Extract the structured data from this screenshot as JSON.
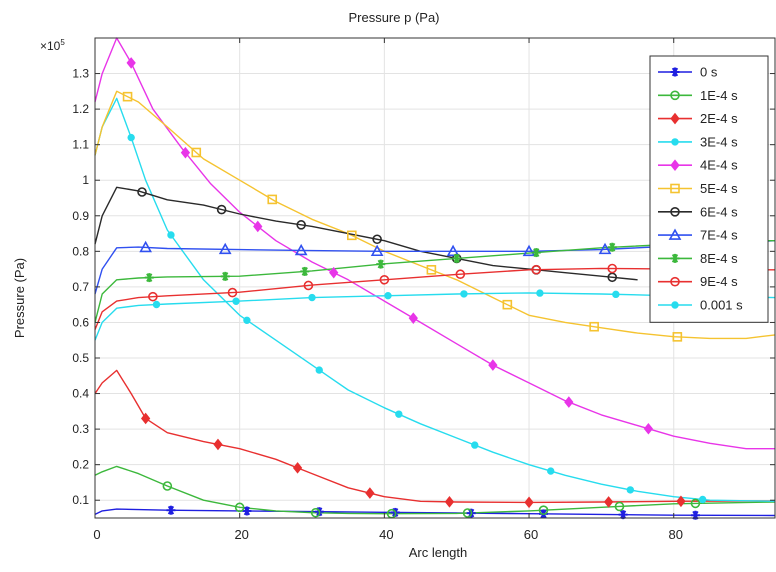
{
  "chart_data": {
    "type": "line",
    "title": "Pressure p (Pa)",
    "xlabel": "Arc length",
    "ylabel": "Pressure (Pa)",
    "y_multiplier": "×10",
    "y_multiplier_exp": "5",
    "xlim": [
      0,
      94
    ],
    "ylim": [
      0.05,
      1.4
    ],
    "x_ticks": [
      0,
      20,
      40,
      60,
      80
    ],
    "x_tick_labels": [
      "0",
      "20",
      "40",
      "60",
      "80"
    ],
    "y_ticks": [
      0.1,
      0.2,
      0.3,
      0.4,
      0.5,
      0.6,
      0.7,
      0.8,
      0.9,
      1,
      1.1,
      1.2,
      1.3
    ],
    "y_tick_labels": [
      "0.1",
      "0.2",
      "0.3",
      "0.4",
      "0.5",
      "0.6",
      "0.7",
      "0.8",
      "0.9",
      "1",
      "1.1",
      "1.2",
      "1.3"
    ],
    "grid": true,
    "legend_position": "top-right",
    "series": [
      {
        "name": "0 s",
        "color": "#1f1fe0",
        "marker": "asterisk",
        "x": [
          0,
          1,
          3,
          10,
          20,
          30,
          40,
          50,
          60,
          70,
          80,
          94
        ],
        "y": [
          0.06,
          0.07,
          0.075,
          0.072,
          0.07,
          0.068,
          0.066,
          0.064,
          0.062,
          0.06,
          0.058,
          0.057
        ],
        "mx": [
          10.5,
          21,
          31,
          41.5,
          52,
          62,
          73,
          83
        ]
      },
      {
        "name": "1E-4 s",
        "color": "#3cb83c",
        "marker": "circle",
        "x": [
          0,
          1,
          3,
          6,
          10,
          15,
          20,
          25,
          30,
          35,
          40,
          50,
          60,
          70,
          80,
          94
        ],
        "y": [
          0.17,
          0.18,
          0.195,
          0.175,
          0.14,
          0.1,
          0.08,
          0.07,
          0.065,
          0.063,
          0.062,
          0.063,
          0.07,
          0.08,
          0.09,
          0.095
        ],
        "mx": [
          10,
          20,
          30.5,
          41,
          51.5,
          62,
          72.5,
          83
        ]
      },
      {
        "name": "2E-4 s",
        "color": "#e83030",
        "marker": "diamond",
        "x": [
          0,
          1,
          3,
          5,
          7,
          10,
          15,
          20,
          25,
          30,
          35,
          40,
          45,
          50,
          60,
          70,
          80,
          94
        ],
        "y": [
          0.4,
          0.43,
          0.465,
          0.4,
          0.33,
          0.29,
          0.265,
          0.245,
          0.215,
          0.175,
          0.135,
          0.11,
          0.097,
          0.095,
          0.094,
          0.095,
          0.097,
          0.098
        ],
        "mx": [
          7,
          17,
          28,
          38,
          49,
          60,
          71,
          81
        ]
      },
      {
        "name": "3E-4 s",
        "color": "#27dcee",
        "marker": "dot",
        "x": [
          0,
          1,
          3,
          5,
          7,
          10,
          15,
          20,
          25,
          30,
          35,
          40,
          45,
          50,
          55,
          60,
          65,
          70,
          75,
          80,
          85,
          94
        ],
        "y": [
          1.07,
          1.15,
          1.23,
          1.12,
          1.0,
          0.86,
          0.72,
          0.62,
          0.55,
          0.48,
          0.41,
          0.36,
          0.315,
          0.275,
          0.235,
          0.2,
          0.17,
          0.145,
          0.125,
          0.11,
          0.1,
          0.097
        ],
        "mx": [
          5,
          10.5,
          21,
          31,
          42,
          52.5,
          63,
          74,
          84
        ]
      },
      {
        "name": "4E-4 s",
        "color": "#e835e8",
        "marker": "diamond",
        "x": [
          0,
          1,
          3,
          5,
          8,
          12,
          16,
          20,
          25,
          30,
          35,
          40,
          45,
          50,
          55,
          60,
          65,
          70,
          75,
          80,
          85,
          90,
          94
        ],
        "y": [
          1.22,
          1.3,
          1.4,
          1.33,
          1.2,
          1.09,
          0.99,
          0.91,
          0.83,
          0.77,
          0.72,
          0.66,
          0.6,
          0.54,
          0.48,
          0.43,
          0.38,
          0.34,
          0.31,
          0.28,
          0.26,
          0.245,
          0.245
        ],
        "mx": [
          5,
          12.5,
          22.5,
          33,
          44,
          55,
          65.5,
          76.5
        ]
      },
      {
        "name": "5E-4 s",
        "color": "#f5c330",
        "marker": "square",
        "x": [
          0,
          1,
          3,
          6,
          10,
          15,
          20,
          25,
          30,
          35,
          40,
          45,
          50,
          55,
          60,
          65,
          70,
          75,
          80,
          85,
          90,
          94
        ],
        "y": [
          1.07,
          1.15,
          1.25,
          1.22,
          1.15,
          1.06,
          1.0,
          0.94,
          0.89,
          0.85,
          0.8,
          0.76,
          0.72,
          0.67,
          0.62,
          0.6,
          0.585,
          0.57,
          0.56,
          0.555,
          0.555,
          0.565
        ],
        "mx": [
          4.5,
          14,
          24.5,
          35.5,
          46.5,
          57,
          69,
          80.5
        ]
      },
      {
        "name": "6E-4 s",
        "color": "#2a2a2a",
        "marker": "circle",
        "x": [
          0,
          1,
          3,
          6,
          10,
          15,
          20,
          25,
          30,
          35,
          40,
          45,
          50,
          55,
          60,
          65,
          70,
          75
        ],
        "y": [
          0.82,
          0.9,
          0.98,
          0.97,
          0.945,
          0.93,
          0.905,
          0.885,
          0.87,
          0.85,
          0.83,
          0.8,
          0.78,
          0.76,
          0.75,
          0.74,
          0.73,
          0.72
        ],
        "mx": [
          6.5,
          17.5,
          28.5,
          39,
          50,
          61,
          71.5
        ]
      },
      {
        "name": "7E-4 s",
        "color": "#3050f0",
        "marker": "triangle",
        "x": [
          0,
          1,
          3,
          6,
          10,
          20,
          30,
          40,
          50,
          60,
          70,
          80,
          90,
          94
        ],
        "y": [
          0.68,
          0.75,
          0.81,
          0.812,
          0.808,
          0.805,
          0.802,
          0.8,
          0.8,
          0.8,
          0.805,
          0.815,
          0.825,
          0.83
        ],
        "mx": [
          7,
          18,
          28.5,
          39,
          49.5,
          60,
          70.5
        ]
      },
      {
        "name": "8E-4 s",
        "color": "#3cb83c",
        "marker": "asterisk",
        "x": [
          0,
          1,
          3,
          6,
          10,
          20,
          30,
          40,
          50,
          60,
          70,
          80,
          90,
          94
        ],
        "y": [
          0.6,
          0.68,
          0.72,
          0.725,
          0.728,
          0.73,
          0.745,
          0.765,
          0.78,
          0.795,
          0.81,
          0.82,
          0.83,
          0.83
        ],
        "mx": [
          7.5,
          18,
          29,
          39.5,
          50,
          61,
          71.5
        ]
      },
      {
        "name": "9E-4 s",
        "color": "#e83030",
        "marker": "circle",
        "x": [
          0,
          1,
          3,
          6,
          10,
          20,
          30,
          40,
          50,
          60,
          70,
          80,
          90,
          94
        ],
        "y": [
          0.58,
          0.63,
          0.66,
          0.67,
          0.675,
          0.685,
          0.705,
          0.72,
          0.735,
          0.748,
          0.752,
          0.75,
          0.748,
          0.748
        ],
        "mx": [
          8,
          19,
          29.5,
          40,
          50.5,
          61,
          71.5
        ]
      },
      {
        "name": "0.001 s",
        "color": "#27dcee",
        "marker": "dot",
        "x": [
          0,
          1,
          3,
          6,
          10,
          20,
          30,
          40,
          50,
          60,
          70,
          80,
          94
        ],
        "y": [
          0.55,
          0.6,
          0.64,
          0.648,
          0.652,
          0.66,
          0.67,
          0.675,
          0.68,
          0.683,
          0.68,
          0.675,
          0.67
        ],
        "mx": [
          8.5,
          19.5,
          30,
          40.5,
          51,
          61.5,
          72
        ]
      }
    ]
  }
}
